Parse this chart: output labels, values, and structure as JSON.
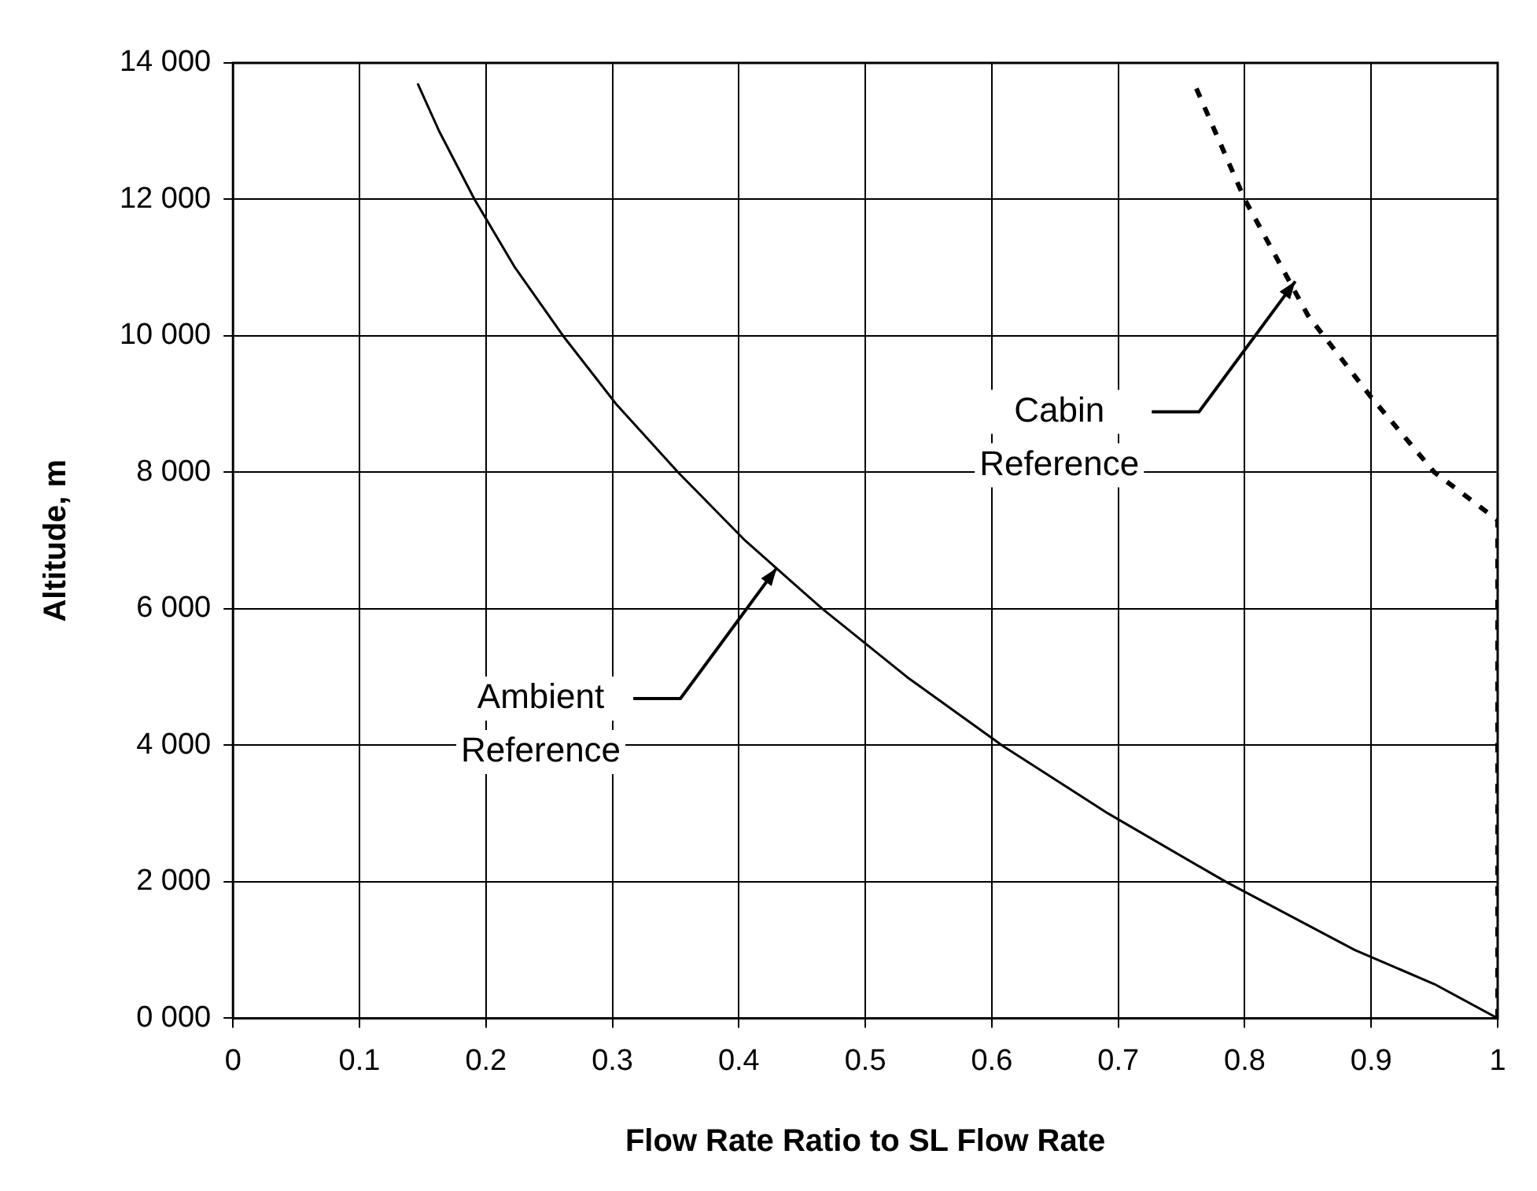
{
  "chart_data": {
    "type": "line",
    "xlabel": "Flow Rate Ratio to SL Flow Rate",
    "ylabel": "Altitude, m",
    "xlim": [
      0,
      1
    ],
    "xticks": [
      0,
      0.1,
      0.2,
      0.3,
      0.4,
      0.5,
      0.6,
      0.7,
      0.8,
      0.9,
      1
    ],
    "ylim": [
      0,
      14000
    ],
    "yticks": [
      {
        "value": 0,
        "label": "0 000"
      },
      {
        "value": 2000,
        "label": "2 000"
      },
      {
        "value": 4000,
        "label": "4 000"
      },
      {
        "value": 6000,
        "label": "6 000"
      },
      {
        "value": 8000,
        "label": "8 000"
      },
      {
        "value": 10000,
        "label": "10 000"
      },
      {
        "value": 12000,
        "label": "12 000"
      },
      {
        "value": 14000,
        "label": "14 000"
      }
    ],
    "grid": true,
    "legend": false,
    "marker": "none",
    "series": [
      {
        "color": "#000000",
        "line_style": "solid",
        "x": [
          1,
          0.95,
          0.887,
          0.785,
          0.692,
          0.608,
          0.533,
          0.466,
          0.405,
          0.352,
          0.303,
          0.261,
          0.223,
          0.191,
          0.163,
          0.146
        ],
        "values": [
          0,
          500,
          1000,
          2000,
          3000,
          4000,
          5000,
          6000,
          7000,
          8000,
          9000,
          10000,
          11000,
          12000,
          13000,
          13700
        ]
      },
      {
        "color": "#000000",
        "line_style": "dashed",
        "x": [
          1,
          1,
          0.95,
          0.9,
          0.85,
          0.8,
          0.76
        ],
        "values": [
          0,
          7300,
          8000,
          9100,
          10300,
          12000,
          13700
        ]
      }
    ],
    "annotations": [
      {
        "text": "Ambient\nReference",
        "x": 0.43,
        "y": 6600
      },
      {
        "text": "Cabin\nReference",
        "x": 0.84,
        "y": 10800
      }
    ]
  }
}
